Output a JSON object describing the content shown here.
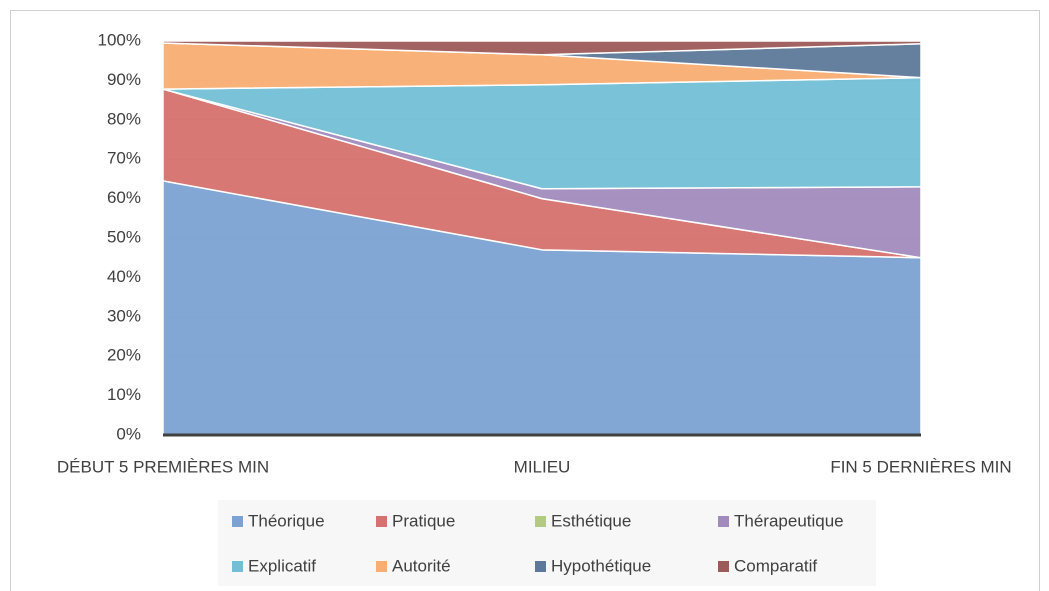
{
  "chart_data": {
    "type": "area",
    "stacked": true,
    "categories": [
      "DÉBUT 5 PREMIÈRES MIN",
      "MILIEU",
      "FIN 5 DERNIÈRES MIN"
    ],
    "series": [
      {
        "name": "Théorique",
        "color": "#7ba2d2",
        "values": [
          64.5,
          47,
          45
        ]
      },
      {
        "name": "Pratique",
        "color": "#d5716e",
        "values": [
          23.3,
          13,
          0
        ]
      },
      {
        "name": "Esthétique",
        "color": "#b2cb80",
        "values": [
          0,
          0,
          0
        ]
      },
      {
        "name": "Thérapeutique",
        "color": "#a18bbd",
        "values": [
          0,
          2.5,
          18
        ]
      },
      {
        "name": "Explicatif",
        "color": "#72bfd5",
        "values": [
          0,
          26.4,
          27.7
        ]
      },
      {
        "name": "Autorité",
        "color": "#f8ad72",
        "values": [
          11.7,
          7.6,
          0
        ]
      },
      {
        "name": "Hypothétique",
        "color": "#5d7899",
        "values": [
          0,
          0,
          8.6
        ]
      },
      {
        "name": "Comparatif",
        "color": "#9c5a59",
        "values": [
          0.5,
          3.5,
          0.7
        ]
      }
    ],
    "ylim": [
      0,
      100
    ],
    "yticks": [
      {
        "value": 0,
        "label": "0%"
      },
      {
        "value": 10,
        "label": "10%"
      },
      {
        "value": 20,
        "label": "20%"
      },
      {
        "value": 30,
        "label": "30%"
      },
      {
        "value": 40,
        "label": "40%"
      },
      {
        "value": 50,
        "label": "50%"
      },
      {
        "value": 60,
        "label": "60%"
      },
      {
        "value": 70,
        "label": "70%"
      },
      {
        "value": 80,
        "label": "80%"
      },
      {
        "value": 90,
        "label": "90%"
      },
      {
        "value": 100,
        "label": "100%"
      }
    ],
    "grid": true,
    "legend": "bottom"
  }
}
